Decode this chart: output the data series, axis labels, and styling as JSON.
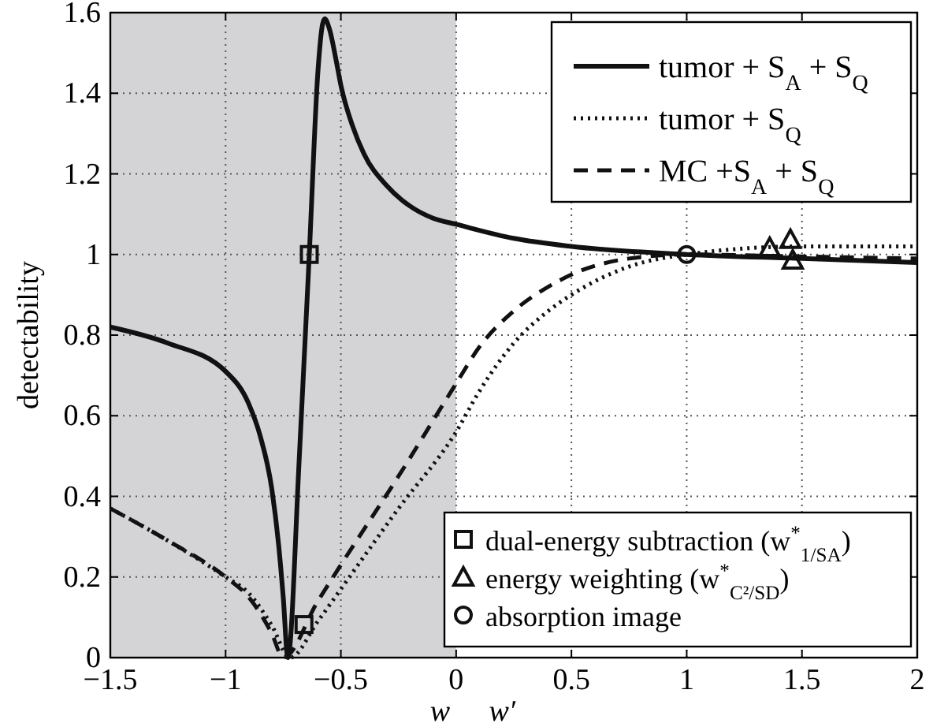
{
  "chart_data": {
    "type": "line",
    "xlabel": "w",
    "ylabel": "detectability",
    "annotations": [
      "w′"
    ],
    "xlim": [
      -1.5,
      2
    ],
    "xticks": [
      {
        "value": -1.5,
        "label": "−1.5"
      },
      {
        "value": -1,
        "label": "−1"
      },
      {
        "value": -0.5,
        "label": "−0.5"
      },
      0,
      0.5,
      1,
      1.5,
      2
    ],
    "ylim": [
      0,
      1.6
    ],
    "yticks": [
      0,
      0.2,
      0.4,
      0.6,
      0.8,
      1,
      1.2,
      1.4,
      1.6
    ],
    "grid": true,
    "legend": "right",
    "bands": [
      {
        "axis": "x",
        "from": -1.5,
        "to": 0,
        "color": "#d4d4d6"
      }
    ],
    "series": [
      {
        "name": "tumor + S$_{A}$ + S$_{Q}$",
        "color": "#111111",
        "line_style": "solid",
        "x": [
          -1.5,
          -1.25,
          -1,
          -0.9,
          -0.85,
          -0.8,
          -0.77,
          -0.75,
          -0.73,
          -0.68,
          -0.637,
          -0.6,
          -0.58,
          -0.57,
          -0.55,
          -0.52,
          -0.5,
          -0.45,
          -0.4,
          -0.3,
          -0.2,
          -0.1,
          0,
          0.25,
          0.5,
          1,
          1.5,
          2
        ],
        "values": [
          0.82,
          0.78,
          0.71,
          0.63,
          0.55,
          0.42,
          0.28,
          0.15,
          0,
          0.5,
          1,
          1.45,
          1.57,
          1.585,
          1.56,
          1.48,
          1.42,
          1.32,
          1.25,
          1.17,
          1.12,
          1.09,
          1.075,
          1.04,
          1.02,
          1,
          0.99,
          0.98
        ]
      },
      {
        "name": "tumor + S$_{Q}$",
        "color": "#111111",
        "line_style": "dotted",
        "x": [
          -1.5,
          -1.25,
          -1,
          -0.9,
          -0.8,
          -0.72,
          -0.6,
          -0.5,
          -0.25,
          0,
          0.1,
          0.25,
          0.4,
          0.5,
          0.75,
          1,
          1.5,
          2
        ],
        "values": [
          0.37,
          0.29,
          0.2,
          0.16,
          0.08,
          0,
          0.09,
          0.17,
          0.37,
          0.56,
          0.66,
          0.78,
          0.86,
          0.9,
          0.97,
          1,
          1.02,
          1.02
        ]
      },
      {
        "name": "MC +S$_{A}$ + S$_{Q}$",
        "color": "#111111",
        "line_style": "dashed",
        "x": [
          -1.5,
          -1.25,
          -1,
          -0.9,
          -0.8,
          -0.75,
          -0.6,
          -0.5,
          -0.25,
          0,
          0.1,
          0.25,
          0.4,
          0.5,
          0.75,
          1,
          1.5,
          2
        ],
        "values": [
          0.37,
          0.29,
          0.2,
          0.15,
          0.06,
          0,
          0.14,
          0.23,
          0.45,
          0.68,
          0.77,
          0.86,
          0.92,
          0.95,
          0.99,
          1,
          0.995,
          0.99
        ]
      },
      {
        "type": "scatter",
        "name": "dual-energy subtraction (w$^{*}$$_{1/SA}$)",
        "color": "#111111",
        "marker": "square",
        "x": [
          -0.637,
          -0.66
        ],
        "values": [
          1,
          0.082
        ]
      },
      {
        "type": "scatter",
        "name": "energy weighting (w$^{*}$$_{C²/SD}$)",
        "color": "#111111",
        "marker": "triangle",
        "x": [
          1.36,
          1.45,
          1.46
        ],
        "values": [
          1.017,
          1.037,
          0.986
        ]
      },
      {
        "type": "scatter",
        "name": "absorption image",
        "color": "#111111",
        "marker": "circle",
        "x": [
          1
        ],
        "values": [
          1
        ]
      }
    ]
  }
}
